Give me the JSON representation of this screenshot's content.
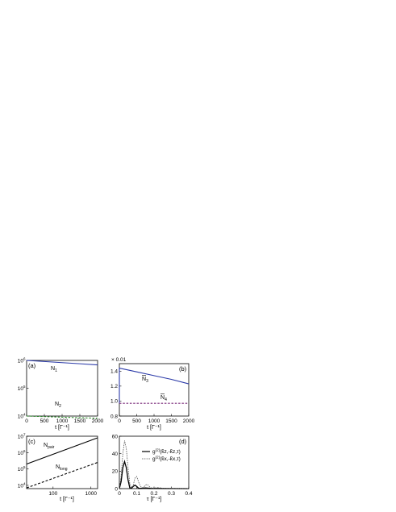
{
  "chart_data": [
    {
      "panel": "(a)",
      "type": "line",
      "xlabel": "t [Γ⁻¹]",
      "ylabel": "",
      "xlim": [
        0,
        2000
      ],
      "ylim_log10": [
        4,
        6
      ],
      "yscale": "log",
      "xticks": [
        "0",
        "500",
        "1000",
        "1500",
        "2000"
      ],
      "yticks": [
        {
          "base": "10",
          "exp": "6"
        },
        {
          "base": "10",
          "exp": "5"
        },
        {
          "base": "10",
          "exp": "4"
        }
      ],
      "series": [
        {
          "label_main": "N",
          "label_sub": "1",
          "color": "#2b3aa8",
          "dash": false,
          "x": [
            0,
            500,
            1000,
            1500,
            2000
          ],
          "y": [
            1000000,
            912000,
            832000,
            759000,
            692000
          ]
        },
        {
          "label_main": "N",
          "label_sub": "2",
          "color": "#2a8a2a",
          "dash": true,
          "x": [
            0,
            500,
            1000,
            1500,
            2000
          ],
          "y": [
            10000,
            9550,
            9120,
            8710,
            8320
          ]
        }
      ]
    },
    {
      "panel": "(b)",
      "type": "line",
      "multiplier": "× 0.01",
      "xlabel": "t [Γ⁻¹]",
      "ylabel": "",
      "xlim": [
        0,
        2000
      ],
      "ylim": [
        0.8,
        1.5
      ],
      "xticks": [
        "0",
        "500",
        "1000",
        "1500",
        "2000"
      ],
      "yticks": [
        "0.8",
        "1.0",
        "1.2",
        "1.4"
      ],
      "series": [
        {
          "label_main": "N",
          "label_sub": "3",
          "color": "#2b3aa8",
          "dash": false,
          "x": [
            0,
            0,
            500,
            1000,
            1500,
            2000
          ],
          "y": [
            0.97,
            1.44,
            1.39,
            1.34,
            1.29,
            1.23
          ]
        },
        {
          "label_main": "N",
          "label_sub": "4",
          "color": "#7a2a7a",
          "dash": true,
          "x": [
            0,
            2000
          ],
          "y": [
            0.97,
            0.97
          ]
        }
      ]
    },
    {
      "panel": "(c)",
      "type": "line",
      "xlabel": "t [Γ⁻¹]",
      "ylabel": "",
      "xscale": "log",
      "yscale": "log",
      "xlim": [
        20,
        1500
      ],
      "ylim_log10": [
        3.8,
        7
      ],
      "xticks": [
        {
          "value": 100,
          "label": "100"
        },
        {
          "value": 1000,
          "label": "1000"
        }
      ],
      "yticks": [
        {
          "base": "10",
          "exp": "7"
        },
        {
          "base": "10",
          "exp": "6"
        },
        {
          "base": "10",
          "exp": "5"
        },
        {
          "base": "10",
          "exp": "4"
        }
      ],
      "series": [
        {
          "label_main": "N",
          "label_sub": "pair",
          "color": "#000000",
          "dash": false,
          "x": [
            20,
            1500
          ],
          "y": [
            200000,
            8000000
          ]
        },
        {
          "label_main": "N",
          "label_sub": "long",
          "color": "#000000",
          "dash": true,
          "x": [
            20,
            1500
          ],
          "y": [
            7000,
            250000
          ]
        }
      ]
    },
    {
      "panel": "(d)",
      "type": "line",
      "xlabel": "τ [Γ⁻¹]",
      "ylabel": "",
      "xlim": [
        0,
        0.4
      ],
      "ylim": [
        0,
        60
      ],
      "xticks": [
        "0",
        "0.1",
        "0.2",
        "0.3",
        "0.4"
      ],
      "yticks": [
        "0",
        "20",
        "40",
        "60"
      ],
      "series": [
        {
          "legend_main": "g",
          "legend_sup": "(2)",
          "legend_rest": "(k̂z,-k̂z,τ)",
          "color": "#000000",
          "dash": false,
          "x": [
            0,
            0.01,
            0.02,
            0.03,
            0.04,
            0.05,
            0.06,
            0.07,
            0.08,
            0.09,
            0.1,
            0.11,
            0.12,
            0.13,
            0.15,
            0.18,
            0.22,
            0.3,
            0.4
          ],
          "y": [
            0,
            8,
            24,
            31,
            24,
            10,
            1,
            0.5,
            2.5,
            4,
            2.5,
            0.6,
            0.2,
            0.5,
            0.8,
            0.3,
            0.2,
            0.1,
            0
          ]
        },
        {
          "legend_main": "g",
          "legend_sup": "(2)",
          "legend_rest": "(k̂x,-k̂x,τ)",
          "color": "#555555",
          "dash": true,
          "x": [
            0,
            0.01,
            0.02,
            0.03,
            0.04,
            0.05,
            0.06,
            0.07,
            0.08,
            0.09,
            0.1,
            0.11,
            0.12,
            0.13,
            0.14,
            0.15,
            0.16,
            0.17,
            0.18,
            0.2,
            0.22,
            0.25,
            0.3,
            0.35,
            0.4
          ],
          "y": [
            0,
            14,
            40,
            55,
            46,
            24,
            6,
            1,
            4,
            12,
            14,
            8,
            3,
            1,
            1.5,
            4,
            5,
            3,
            1,
            0.6,
            1.2,
            0.5,
            0.3,
            0.2,
            0.1
          ]
        }
      ]
    }
  ]
}
